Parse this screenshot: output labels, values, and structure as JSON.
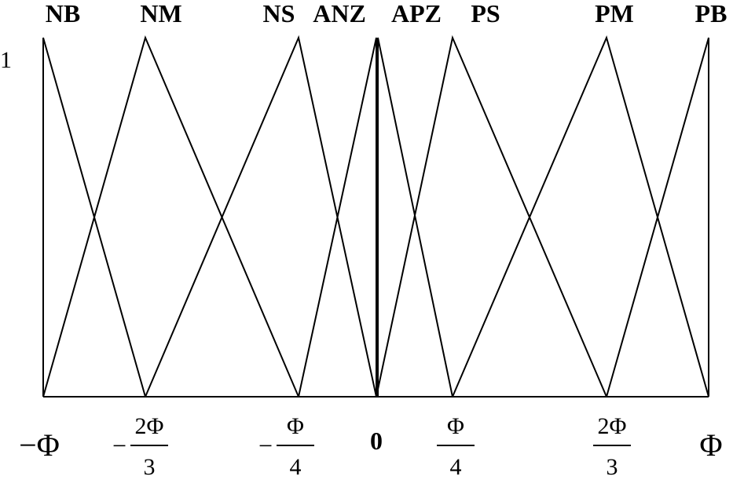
{
  "y_label": "1",
  "sets": [
    "NB",
    "NM",
    "NS",
    "ANZ",
    "APZ",
    "PS",
    "PM",
    "PB"
  ],
  "x_labels": [
    {
      "text": "−Φ"
    },
    {
      "sign": "−",
      "numerator": "2Φ",
      "denominator": "3"
    },
    {
      "sign": "−",
      "numerator": "Φ",
      "denominator": "4"
    },
    {
      "text": "0"
    },
    {
      "numerator": "Φ",
      "denominator": "4"
    },
    {
      "numerator": "2Φ",
      "denominator": "3"
    },
    {
      "text": "Φ"
    }
  ]
}
